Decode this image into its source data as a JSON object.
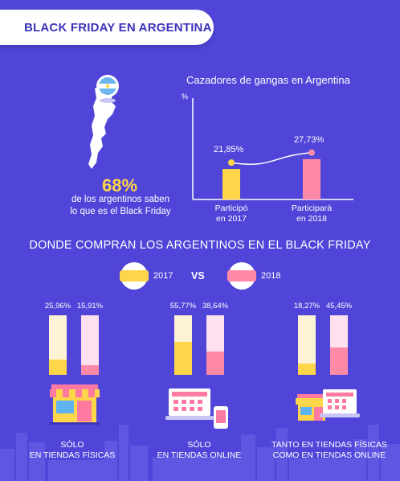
{
  "header": {
    "title": "BLACK FRIDAY EN ARGENTINA"
  },
  "awareness": {
    "percent": "68%",
    "line1": "de los argentinos saben",
    "line2": "lo que es el Black Friday"
  },
  "chart_data": [
    {
      "type": "line",
      "title": "Cazadores de gangas en Argentina",
      "ylabel": "%",
      "categories": [
        "Participó en 2017",
        "Participará en 2018"
      ],
      "category_lines": [
        [
          "Participó",
          "en 2017"
        ],
        [
          "Participará",
          "en 2018"
        ]
      ],
      "values": [
        21.85,
        27.73
      ],
      "value_labels": [
        "21,85%",
        "27,73%"
      ],
      "ylim": [
        0,
        60
      ],
      "colors": [
        "#ffd54a",
        "#ff8aa8"
      ]
    },
    {
      "type": "bar",
      "title": "DONDE COMPRAN LOS ARGENTINOS EN EL BLACK FRIDAY",
      "categories": [
        [
          "SÓLO",
          "EN TIENDAS FÍSICAS"
        ],
        [
          "SÓLO",
          "EN TIENDAS ONLINE"
        ],
        [
          "TANTO EN TIENDAS FÍSICAS",
          "COMO EN TIENDAS ONLINE"
        ]
      ],
      "series": [
        {
          "name": "2017",
          "values": [
            25.96,
            55.77,
            18.27
          ],
          "labels": [
            "25,96%",
            "55,77%",
            "18,27%"
          ],
          "color": "#ffd54a",
          "track": "#fff3d6"
        },
        {
          "name": "2018",
          "values": [
            15.91,
            38.64,
            45.45
          ],
          "labels": [
            "15,91%",
            "38,64%",
            "45,45%"
          ],
          "color": "#ff8aa8",
          "track": "#ffe0ee"
        }
      ],
      "ylim": [
        0,
        100
      ],
      "versus": "VS"
    }
  ],
  "colors": {
    "background": "#5045d8",
    "accent_yellow": "#ffd54a",
    "accent_pink": "#ff8aa8",
    "skyline": "#6a63e6"
  },
  "icons": [
    "argentina-map-icon",
    "argentina-flag-icon",
    "storefront-icon",
    "laptop-shop-icon",
    "phone-icon",
    "store-and-laptop-icon"
  ]
}
